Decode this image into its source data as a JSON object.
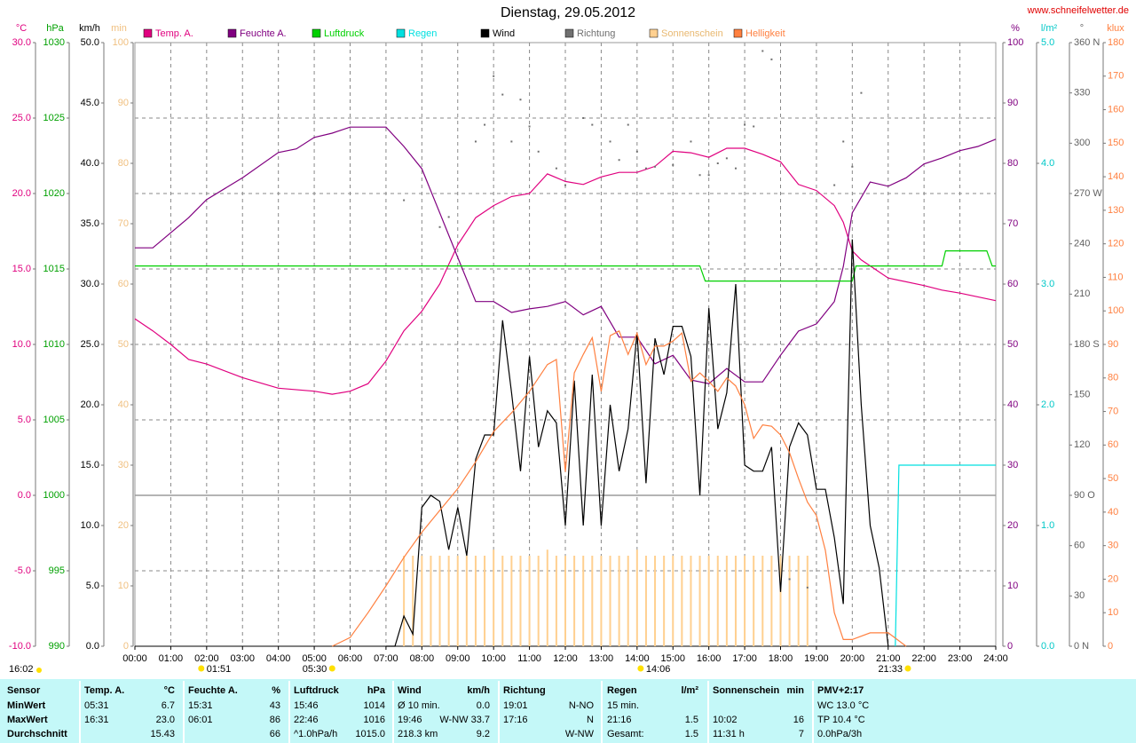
{
  "chart_data": {
    "type": "line",
    "title": "Dienstag, 29.05.2012",
    "source": "www.schneifelwetter.de",
    "xlim": [
      0,
      24
    ],
    "xticks": [
      {
        "value": 0,
        "label": "00:00"
      },
      {
        "value": 1,
        "label": "01:00"
      },
      {
        "value": 2,
        "label": "02:00"
      },
      {
        "value": 3,
        "label": "03:00"
      },
      {
        "value": 4,
        "label": "04:00"
      },
      {
        "value": 5,
        "label": "05:00"
      },
      {
        "value": 6,
        "label": "06:00"
      },
      {
        "value": 7,
        "label": "07:00"
      },
      {
        "value": 8,
        "label": "08:00"
      },
      {
        "value": 9,
        "label": "09:00"
      },
      {
        "value": 10,
        "label": "10:00"
      },
      {
        "value": 11,
        "label": "11:00"
      },
      {
        "value": 12,
        "label": "12:00"
      },
      {
        "value": 13,
        "label": "13:00"
      },
      {
        "value": 14,
        "label": "14:00"
      },
      {
        "value": 15,
        "label": "15:00"
      },
      {
        "value": 16,
        "label": "16:00"
      },
      {
        "value": 17,
        "label": "17:00"
      },
      {
        "value": 18,
        "label": "18:00"
      },
      {
        "value": 19,
        "label": "19:00"
      },
      {
        "value": 20,
        "label": "20:00"
      },
      {
        "value": 21,
        "label": "21:00"
      },
      {
        "value": 22,
        "label": "22:00"
      },
      {
        "value": 23,
        "label": "23:00"
      },
      {
        "value": 24,
        "label": "24:00"
      }
    ],
    "grid": true,
    "axes": [
      {
        "id": "temp",
        "label": "°C",
        "side": "left",
        "color": "#e0007f",
        "lim": [
          -10,
          30
        ],
        "ticks": [
          {
            "value": -10,
            "label": "-10.0"
          },
          {
            "value": -5,
            "label": "-5.0"
          },
          {
            "value": 0,
            "label": "0.0"
          },
          {
            "value": 5,
            "label": "5.0"
          },
          {
            "value": 10,
            "label": "10.0"
          },
          {
            "value": 15,
            "label": "15.0"
          },
          {
            "value": 20,
            "label": "20.0"
          },
          {
            "value": 25,
            "label": "25.0"
          },
          {
            "value": 30,
            "label": "30.0"
          }
        ]
      },
      {
        "id": "hpa",
        "label": "hPa",
        "side": "left",
        "color": "#00a000",
        "lim": [
          990,
          1030
        ],
        "ticks": [
          990,
          995,
          1000,
          1005,
          1010,
          1015,
          1020,
          1025,
          1030
        ]
      },
      {
        "id": "kmh",
        "label": "km/h",
        "side": "left",
        "color": "#000000",
        "lim": [
          0,
          50
        ],
        "ticks": [
          {
            "value": 0,
            "label": "0.0"
          },
          {
            "value": 5,
            "label": "5.0"
          },
          {
            "value": 10,
            "label": "10.0"
          },
          {
            "value": 15,
            "label": "15.0"
          },
          {
            "value": 20,
            "label": "20.0"
          },
          {
            "value": 25,
            "label": "25.0"
          },
          {
            "value": 30,
            "label": "30.0"
          },
          {
            "value": 35,
            "label": "35.0"
          },
          {
            "value": 40,
            "label": "40.0"
          },
          {
            "value": 45,
            "label": "45.0"
          },
          {
            "value": 50,
            "label": "50.0"
          }
        ]
      },
      {
        "id": "min",
        "label": "min",
        "side": "left",
        "color": "#f0c080",
        "lim": [
          0,
          100
        ],
        "ticks": [
          0,
          10,
          20,
          30,
          40,
          50,
          60,
          70,
          80,
          90,
          100
        ]
      },
      {
        "id": "pct",
        "label": "%",
        "side": "right",
        "color": "#800080",
        "lim": [
          0,
          100
        ],
        "ticks": [
          0,
          10,
          20,
          30,
          40,
          50,
          60,
          70,
          80,
          90,
          100
        ]
      },
      {
        "id": "lm2",
        "label": "l/m²",
        "side": "right",
        "color": "#00c8c8",
        "lim": [
          0,
          5
        ],
        "ticks": [
          {
            "value": 0,
            "label": "0.0"
          },
          {
            "value": 1,
            "label": "1.0"
          },
          {
            "value": 2,
            "label": "2.0"
          },
          {
            "value": 3,
            "label": "3.0"
          },
          {
            "value": 4,
            "label": "4.0"
          },
          {
            "value": 5,
            "label": "5.0"
          }
        ]
      },
      {
        "id": "deg",
        "label": "°",
        "side": "right",
        "color": "#606060",
        "lim": [
          0,
          360
        ],
        "ticks": [
          {
            "value": 0,
            "label": "0 N"
          },
          30,
          60,
          {
            "value": 90,
            "label": "90 O"
          },
          120,
          150,
          {
            "value": 180,
            "label": "180 S"
          },
          210,
          240,
          {
            "value": 270,
            "label": "270 W"
          },
          300,
          330,
          {
            "value": 360,
            "label": "360 N"
          }
        ]
      },
      {
        "id": "klux",
        "label": "klux",
        "side": "right",
        "color": "#ff8040",
        "lim": [
          0,
          180
        ],
        "ticks": [
          0,
          10,
          20,
          30,
          40,
          50,
          60,
          70,
          80,
          90,
          100,
          110,
          120,
          130,
          140,
          150,
          160,
          170,
          180
        ]
      }
    ],
    "series": [
      {
        "name": "Temp. A.",
        "color": "#e0007f",
        "axis": "temp",
        "type": "line",
        "x": [
          0,
          0.5,
          1,
          1.5,
          2,
          3,
          4,
          5,
          5.5,
          6,
          6.5,
          7,
          7.5,
          8,
          8.5,
          9,
          9.5,
          10,
          10.5,
          11,
          11.5,
          12,
          12.5,
          13,
          13.5,
          14,
          14.5,
          15,
          15.5,
          16,
          16.5,
          17,
          17.5,
          18,
          18.5,
          19,
          19.5,
          19.75,
          20,
          20.25,
          21,
          22,
          22.5,
          23,
          24
        ],
        "values": [
          11.7,
          10.9,
          10.0,
          9.0,
          8.7,
          7.8,
          7.1,
          6.9,
          6.7,
          6.9,
          7.4,
          8.9,
          10.9,
          12.2,
          14.0,
          16.6,
          18.4,
          19.2,
          19.8,
          20.0,
          21.3,
          20.8,
          20.6,
          21.1,
          21.4,
          21.4,
          21.8,
          22.8,
          22.7,
          22.4,
          23.0,
          23.0,
          22.6,
          22.1,
          20.6,
          20.2,
          19.2,
          18.1,
          16.2,
          15.6,
          14.4,
          13.9,
          13.6,
          13.4,
          12.9
        ]
      },
      {
        "name": "Feuchte A.",
        "color": "#800080",
        "axis": "pct",
        "type": "line",
        "x": [
          0,
          0.5,
          1,
          1.5,
          2,
          3,
          4,
          4.5,
          5,
          5.5,
          6,
          7,
          7.5,
          8,
          8.5,
          9,
          9.5,
          10,
          10.5,
          11,
          11.5,
          12,
          12.5,
          13,
          13.5,
          14,
          14.5,
          15,
          15.5,
          16,
          16.5,
          17,
          17.5,
          18,
          18.5,
          19,
          19.5,
          19.75,
          20,
          20.5,
          21,
          21.5,
          22,
          22.5,
          23,
          23.5,
          24
        ],
        "values": [
          66,
          66,
          68.5,
          71,
          74,
          77.6,
          81.8,
          82.4,
          84.3,
          85,
          86,
          86,
          82.8,
          79.1,
          71.8,
          64.4,
          57.1,
          57.1,
          55.3,
          55.9,
          56.3,
          57.1,
          54.9,
          56.3,
          51.2,
          51.2,
          46.8,
          48.2,
          44.1,
          43.5,
          46.0,
          43.8,
          43.8,
          48.2,
          52.2,
          53.4,
          57.1,
          62.9,
          71.8,
          76.9,
          76.2,
          77.6,
          79.9,
          80.9,
          82.1,
          82.8,
          84
        ]
      },
      {
        "name": "Luftdruck",
        "color": "#00d000",
        "axis": "hpa",
        "type": "line",
        "x": [
          0,
          15.75,
          15.9,
          20,
          20.1,
          22.5,
          22.6,
          23.75,
          23.9,
          24
        ],
        "values": [
          1015.2,
          1015.2,
          1014.2,
          1014.2,
          1015.2,
          1015.2,
          1016.2,
          1016.2,
          1015.2,
          1015.2
        ]
      },
      {
        "name": "Regen",
        "color": "#00e0e0",
        "axis": "lm2",
        "type": "line",
        "x": [
          21.2,
          21.3,
          24
        ],
        "values": [
          0,
          1.5,
          1.5
        ]
      },
      {
        "name": "Wind",
        "color": "#000000",
        "axis": "kmh",
        "type": "line",
        "x": [
          7,
          7.25,
          7.5,
          7.75,
          8,
          8.25,
          8.5,
          8.75,
          9,
          9.25,
          9.5,
          9.75,
          10,
          10.25,
          10.5,
          10.75,
          11,
          11.25,
          11.5,
          11.75,
          12,
          12.25,
          12.5,
          12.75,
          13,
          13.25,
          13.5,
          13.75,
          14,
          14.25,
          14.5,
          14.75,
          15,
          15.25,
          15.5,
          15.75,
          16,
          16.25,
          16.5,
          16.75,
          17,
          17.25,
          17.5,
          17.75,
          18,
          18.25,
          18.5,
          18.75,
          19,
          19.25,
          19.5,
          19.75,
          20,
          20.25,
          20.5,
          20.75,
          21
        ],
        "values": [
          0,
          0,
          2.5,
          1,
          11.5,
          12.5,
          12,
          8,
          11.5,
          7.5,
          15.5,
          17.5,
          17.5,
          27,
          21,
          14.5,
          24,
          16.5,
          19.5,
          18.5,
          10,
          22,
          10,
          22.5,
          10,
          20,
          14.5,
          18,
          26,
          13.5,
          25.5,
          22.5,
          26.5,
          26.5,
          24,
          12.5,
          28,
          18,
          21,
          30,
          15,
          14.5,
          14.5,
          16.5,
          4.5,
          16.5,
          18.5,
          17.5,
          13,
          13,
          9,
          3.5,
          33.7,
          20,
          10,
          6.5,
          0
        ]
      },
      {
        "name": "Richtung",
        "color": "#707070",
        "axis": "deg",
        "type": "scatter",
        "x": [
          7.5,
          8.5,
          8.75,
          9.5,
          9.75,
          10,
          10.25,
          10.5,
          10.75,
          11,
          11.25,
          11.75,
          12,
          12.5,
          12.75,
          13.25,
          13.5,
          13.75,
          14,
          14.25,
          14.5,
          15,
          15.5,
          15.75,
          16,
          16.25,
          16.5,
          16.75,
          17,
          17.25,
          17.5,
          17.75,
          18.25,
          18.75,
          19.5,
          19.75,
          20,
          20.25
        ],
        "values": [
          266,
          250,
          256,
          301,
          311,
          340,
          329,
          301,
          326,
          310,
          295,
          285,
          275,
          315,
          311,
          301,
          290,
          311,
          295,
          285,
          286,
          287,
          301,
          281,
          281,
          288,
          291,
          285,
          311,
          310,
          355,
          350,
          40,
          35,
          275,
          301,
          286,
          330
        ]
      },
      {
        "name": "Sonnenschein",
        "color": "#ffd090",
        "axis": "min",
        "type": "bar",
        "x": [
          7.5,
          7.75,
          8,
          8.25,
          8.5,
          8.75,
          9,
          9.25,
          9.5,
          9.75,
          10,
          10.25,
          10.5,
          10.75,
          11,
          11.25,
          11.5,
          11.75,
          12,
          12.25,
          12.5,
          12.75,
          13,
          13.25,
          13.5,
          13.75,
          14,
          14.25,
          14.5,
          14.75,
          15,
          15.25,
          15.5,
          15.75,
          16,
          16.25,
          16.5,
          16.75,
          17,
          17.25,
          17.5,
          17.75,
          18,
          18.25,
          18.5,
          18.75
        ],
        "values": [
          15,
          15,
          15,
          15,
          15,
          15,
          15,
          15,
          15,
          15,
          16,
          15,
          15,
          15,
          15,
          15,
          16,
          15,
          15,
          15,
          15,
          15,
          15,
          15,
          15,
          15,
          16,
          15,
          15,
          15,
          15,
          15,
          15,
          15,
          15,
          15,
          15,
          15,
          15,
          15,
          15,
          15,
          15,
          15,
          15,
          15
        ]
      },
      {
        "name": "Helligkeit",
        "color": "#ff8040",
        "axis": "klux",
        "type": "line",
        "x": [
          5.5,
          6,
          6.5,
          7,
          7.5,
          8,
          8.5,
          9,
          9.5,
          10,
          10.5,
          11,
          11.5,
          11.75,
          12,
          12.25,
          12.5,
          12.75,
          13,
          13.25,
          13.5,
          13.75,
          14,
          14.25,
          14.5,
          14.75,
          15,
          15.25,
          15.5,
          15.75,
          16,
          16.25,
          16.5,
          16.75,
          17,
          17.25,
          17.5,
          17.75,
          18,
          18.25,
          18.5,
          18.75,
          19,
          19.25,
          19.5,
          19.75,
          20,
          20.5,
          21,
          21.25,
          21.5
        ],
        "values": [
          0,
          2.6,
          10,
          18,
          26.5,
          34,
          40.5,
          47,
          55,
          64,
          69.6,
          76,
          84,
          85.5,
          52,
          81.5,
          87,
          92,
          76,
          92.6,
          94,
          87,
          93.4,
          84,
          89.5,
          89.5,
          91,
          93.4,
          79,
          81.5,
          79,
          76,
          80,
          77.6,
          72,
          62,
          66,
          65.6,
          63,
          57.7,
          50,
          43,
          39,
          28.6,
          10,
          2,
          2,
          4,
          4,
          2,
          0
        ]
      }
    ],
    "annotations": [
      {
        "text": "01:51",
        "x": 1.85
      },
      {
        "text": "05:30",
        "x": 5.5
      },
      {
        "text": "14:06",
        "x": 14.1
      },
      {
        "text": "21:33",
        "x": 21.55
      }
    ],
    "corner_note": "16:02"
  },
  "stats": {
    "columns": [
      {
        "title": "Sensor"
      },
      {
        "title": "Temp. A.",
        "unit": "°C"
      },
      {
        "title": "Feuchte A.",
        "unit": "%"
      },
      {
        "title": "Luftdruck",
        "unit": "hPa"
      },
      {
        "title": "Wind",
        "unit": "km/h"
      },
      {
        "title": "Richtung"
      },
      {
        "title": "Regen",
        "unit": "l/m²"
      },
      {
        "title": "Sonnenschein",
        "unit": "min"
      },
      {
        "title": "PMV+2:17"
      }
    ],
    "rows": [
      {
        "label": "MinWert",
        "cells": [
          {
            "left": "05:31",
            "right": "6.7"
          },
          {
            "left": "15:31",
            "right": "43"
          },
          {
            "left": "15:46",
            "right": "1014"
          },
          {
            "left": "Ø 10 min.",
            "right": "0.0"
          },
          {
            "left": "19:01",
            "right": "N-NO"
          },
          {
            "left": "15 min."
          },
          null,
          {
            "left": "WC 13.0 °C"
          }
        ]
      },
      {
        "label": "MaxWert",
        "cells": [
          {
            "left": "16:31",
            "right": "23.0"
          },
          {
            "left": "06:01",
            "right": "86"
          },
          {
            "left": "22:46",
            "right": "1016"
          },
          {
            "left": "19:46",
            "right": "W-NW 33.7"
          },
          {
            "left": "17:16",
            "right": "N"
          },
          {
            "left": "21:16",
            "right": "1.5"
          },
          {
            "left": "10:02",
            "right": "16"
          },
          {
            "left": "TP 10.4 °C"
          }
        ]
      },
      {
        "label": "Durchschnitt",
        "cells": [
          {
            "right": "15.43"
          },
          {
            "right": "66"
          },
          {
            "left": "^1.0hPa/h",
            "right": "1015.0"
          },
          {
            "left": "218.3 km",
            "right": "9.2"
          },
          {
            "right": "W-NW"
          },
          {
            "left": "Gesamt:",
            "right": "1.5"
          },
          {
            "left": "11:31 h",
            "right": "7"
          },
          {
            "left": "0.0hPa/3h"
          }
        ]
      }
    ]
  }
}
